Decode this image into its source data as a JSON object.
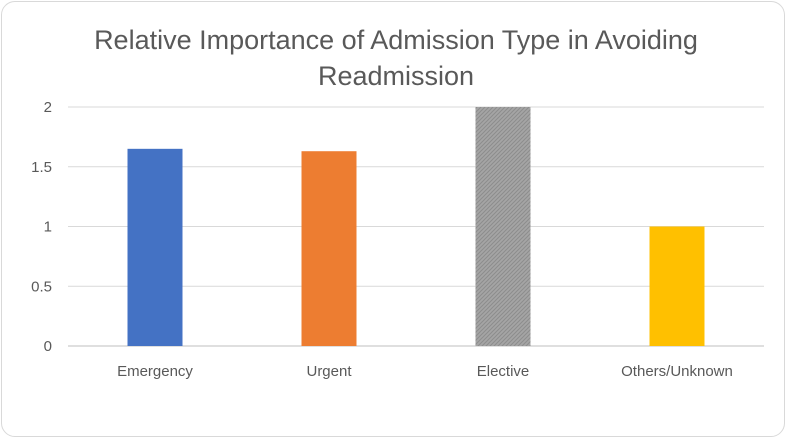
{
  "chart_data": {
    "type": "bar",
    "title_lines": [
      "Relative Importance of Admission Type in Avoiding",
      "Readmission"
    ],
    "categories": [
      "Emergency",
      "Urgent",
      "Elective",
      "Others/Unknown"
    ],
    "values": [
      1.65,
      1.63,
      2.0,
      1.0
    ],
    "colors": [
      "#4472c4",
      "#ed7d31",
      "#a5a5a5",
      "#ffc000"
    ],
    "yticks": [
      "0",
      "0.5",
      "1",
      "1.5",
      "2"
    ],
    "ylim": [
      0,
      2
    ],
    "xlabel": "",
    "ylabel": "",
    "grid": true,
    "legend": "none"
  }
}
